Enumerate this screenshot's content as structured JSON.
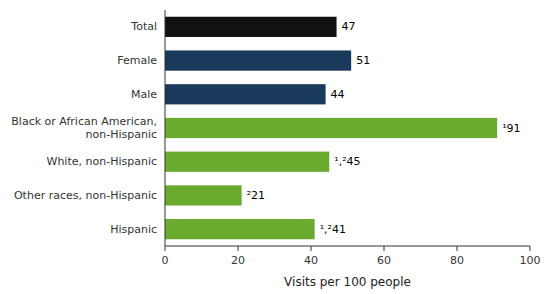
{
  "chart_data": {
    "type": "bar",
    "orientation": "horizontal",
    "categories": [
      "Hispanic",
      "Other races, non-Hispanic",
      "White, non-Hispanic",
      "Black or African American,\nnon-Hispanic",
      "Male",
      "Female",
      "Total"
    ],
    "values": [
      41,
      21,
      45,
      91,
      44,
      51,
      47
    ],
    "value_labels": [
      "¹,²41",
      "²21",
      "¹,²45",
      "¹91",
      "44",
      "51",
      "47"
    ],
    "colors": [
      "#6aaa2e",
      "#6aaa2e",
      "#6aaa2e",
      "#6aaa2e",
      "#1a3a5c",
      "#1a3a5c",
      "#111111"
    ],
    "data_labels": true,
    "xlabel": "Visits per 100 people",
    "xlim": [
      0,
      100
    ],
    "xticks": [
      0,
      20,
      40,
      60,
      80,
      100
    ],
    "grid": false
  }
}
